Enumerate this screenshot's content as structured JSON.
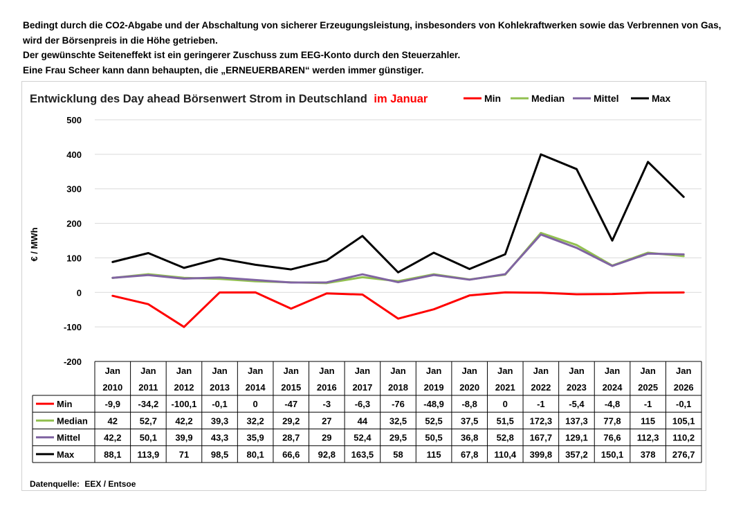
{
  "intro": {
    "lines": [
      "Bedingt durch die CO2-Abgabe und der Abschaltung von sicherer Erzeugungsleistung, insbesonders von Kohlekraftwerken sowie das Verbrennen von Gas,",
      "wird der Börsenpreis in die Höhe getrieben.",
      "Der gewünschte Seiteneffekt ist ein geringerer Zuschuss zum EEG-Konto durch den Steuerzahler.",
      "Eine Frau Scheer kann dann behaupten, die „ERNEUERBAREN“ werden immer günstiger."
    ]
  },
  "chart_data": {
    "type": "line",
    "title": "Entwicklung des Day ahead Börsenwert Strom in Deutschland",
    "title_highlight": "im Januar",
    "title_highlight_color": "#ff0000",
    "ylabel": "€ / MWh",
    "xlabel": "",
    "ylim": [
      -200,
      500
    ],
    "yticks": [
      500,
      400,
      300,
      200,
      100,
      0,
      -100,
      -200
    ],
    "grid": true,
    "legend_position": "top-right",
    "category_month": "Jan",
    "categories": [
      "2010",
      "2011",
      "2012",
      "2013",
      "2014",
      "2015",
      "2016",
      "2017",
      "2018",
      "2019",
      "2020",
      "2021",
      "2022",
      "2023",
      "2024",
      "2025",
      "2026"
    ],
    "series": [
      {
        "name": "Min",
        "color": "#ff0000",
        "values": [
          -9.9,
          -34.2,
          -100.1,
          -0.1,
          0,
          -47,
          -3,
          -6.3,
          -76,
          -48.9,
          -8.8,
          0,
          -1,
          -5.4,
          -4.8,
          -1,
          -0.1
        ],
        "labels": [
          "-9,9",
          "-34,2",
          "-100,1",
          "-0,1",
          "0",
          "-47",
          "-3",
          "-6,3",
          "-76",
          "-48,9",
          "-8,8",
          "0",
          "-1",
          "-5,4",
          "-4,8",
          "-1",
          "-0,1"
        ]
      },
      {
        "name": "Median",
        "color": "#92c050",
        "values": [
          42,
          52.7,
          42.2,
          39.3,
          32.2,
          29.2,
          27,
          44,
          32.5,
          52.5,
          37.5,
          51.5,
          172.3,
          137.3,
          77.8,
          115,
          105.1
        ],
        "labels": [
          "42",
          "52,7",
          "42,2",
          "39,3",
          "32,2",
          "29,2",
          "27",
          "44",
          "32,5",
          "52,5",
          "37,5",
          "51,5",
          "172,3",
          "137,3",
          "77,8",
          "115",
          "105,1"
        ]
      },
      {
        "name": "Mittel",
        "color": "#8064a2",
        "values": [
          42.2,
          50.1,
          39.9,
          43.3,
          35.9,
          28.7,
          29,
          52.4,
          29.5,
          50.5,
          36.8,
          52.8,
          167.7,
          129.1,
          76.6,
          112.3,
          110.2
        ],
        "labels": [
          "42,2",
          "50,1",
          "39,9",
          "43,3",
          "35,9",
          "28,7",
          "29",
          "52,4",
          "29,5",
          "50,5",
          "36,8",
          "52,8",
          "167,7",
          "129,1",
          "76,6",
          "112,3",
          "110,2"
        ]
      },
      {
        "name": "Max",
        "color": "#000000",
        "values": [
          88.1,
          113.9,
          71,
          98.5,
          80.1,
          66.6,
          92.8,
          163.5,
          58,
          115,
          67.8,
          110.4,
          399.8,
          357.2,
          150.1,
          378,
          276.7
        ],
        "labels": [
          "88,1",
          "113,9",
          "71",
          "98,5",
          "80,1",
          "66,6",
          "92,8",
          "163,5",
          "58",
          "115",
          "67,8",
          "110,4",
          "399,8",
          "357,2",
          "150,1",
          "378",
          "276,7"
        ]
      }
    ],
    "source_label": "Datenquelle:",
    "source": "EEX / Entsoe"
  }
}
